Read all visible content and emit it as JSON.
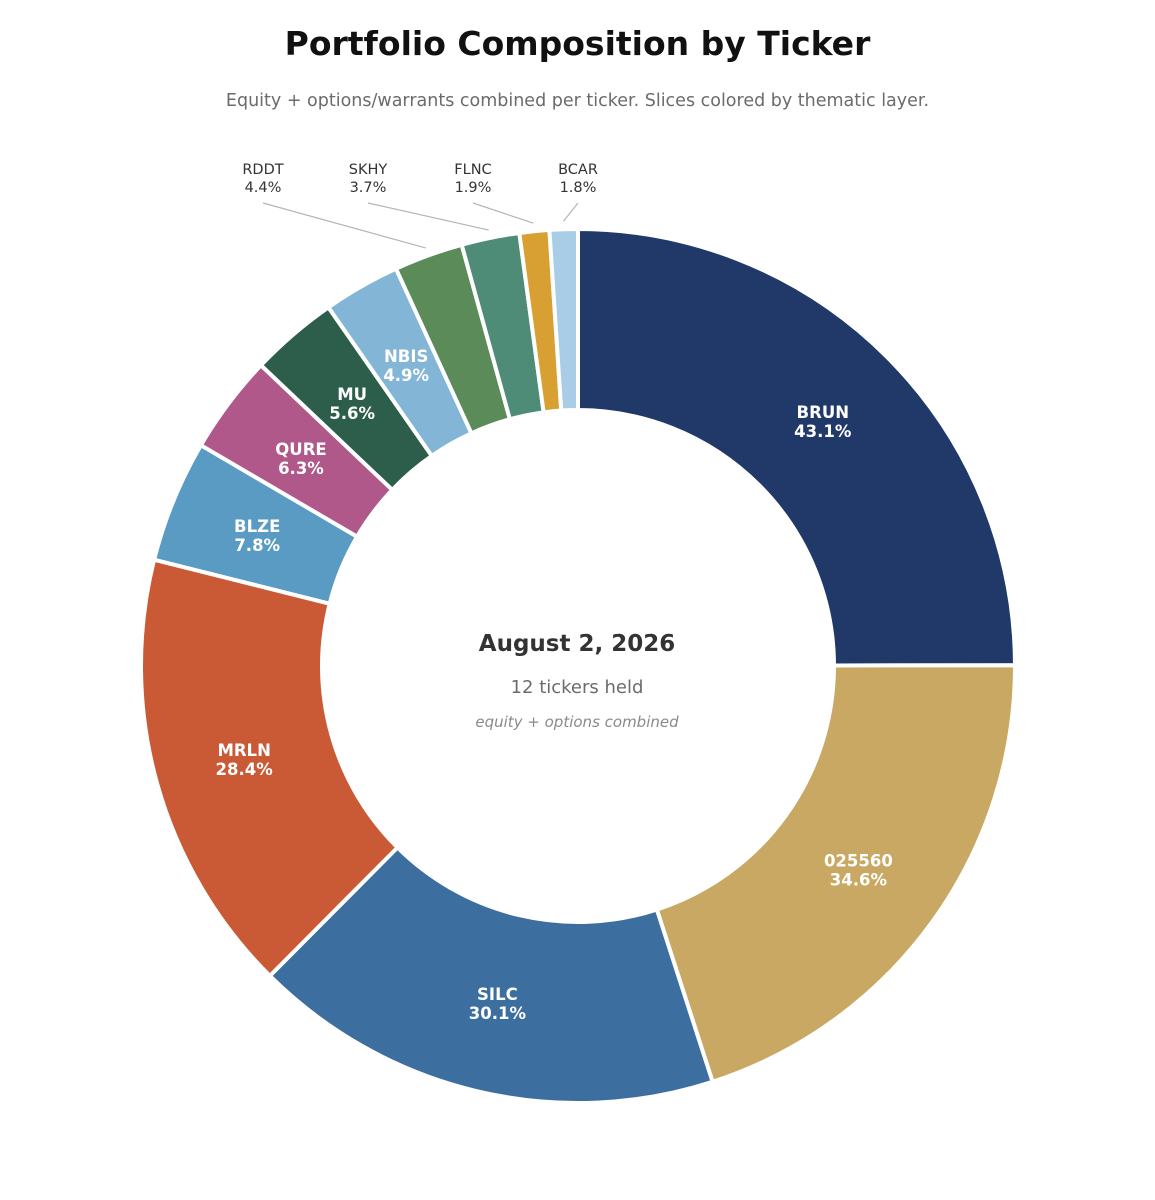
{
  "title": "Portfolio Composition by Ticker",
  "subtitle": "Equity + options/warrants combined per ticker. Slices colored by thematic layer.",
  "center": {
    "date": "August 2, 2026",
    "count_label": "12 tickers held",
    "note": "equity + options combined"
  },
  "chart_data": {
    "type": "pie",
    "style": "donut",
    "start": "12 o'clock",
    "direction": "clockwise",
    "slices": [
      {
        "label": "BRUN",
        "value": 43.1,
        "display": "43.1%",
        "color": "#203969",
        "label_placement": "inside"
      },
      {
        "label": "025560",
        "value": 34.6,
        "display": "34.6%",
        "color": "#c8a862",
        "label_placement": "inside"
      },
      {
        "label": "SILC",
        "value": 30.1,
        "display": "30.1%",
        "color": "#3c6e9f",
        "label_placement": "inside"
      },
      {
        "label": "MRLN",
        "value": 28.4,
        "display": "28.4%",
        "color": "#c95a35",
        "label_placement": "inside"
      },
      {
        "label": "BLZE",
        "value": 7.8,
        "display": "7.8%",
        "color": "#5a9bc4",
        "label_placement": "inside"
      },
      {
        "label": "QURE",
        "value": 6.3,
        "display": "6.3%",
        "color": "#b0588a",
        "label_placement": "inside"
      },
      {
        "label": "MU",
        "value": 5.6,
        "display": "5.6%",
        "color": "#2d5e4c",
        "label_placement": "inside"
      },
      {
        "label": "NBIS",
        "value": 4.9,
        "display": "4.9%",
        "color": "#82b5d6",
        "label_placement": "inside"
      },
      {
        "label": "RDDT",
        "value": 4.4,
        "display": "4.4%",
        "color": "#5b8b59",
        "label_placement": "outside"
      },
      {
        "label": "SKHY",
        "value": 3.7,
        "display": "3.7%",
        "color": "#4e8c77",
        "label_placement": "outside"
      },
      {
        "label": "FLNC",
        "value": 1.9,
        "display": "1.9%",
        "color": "#d8a033",
        "label_placement": "outside"
      },
      {
        "label": "BCAR",
        "value": 1.8,
        "display": "1.8%",
        "color": "#a9cde6",
        "label_placement": "outside"
      }
    ]
  }
}
